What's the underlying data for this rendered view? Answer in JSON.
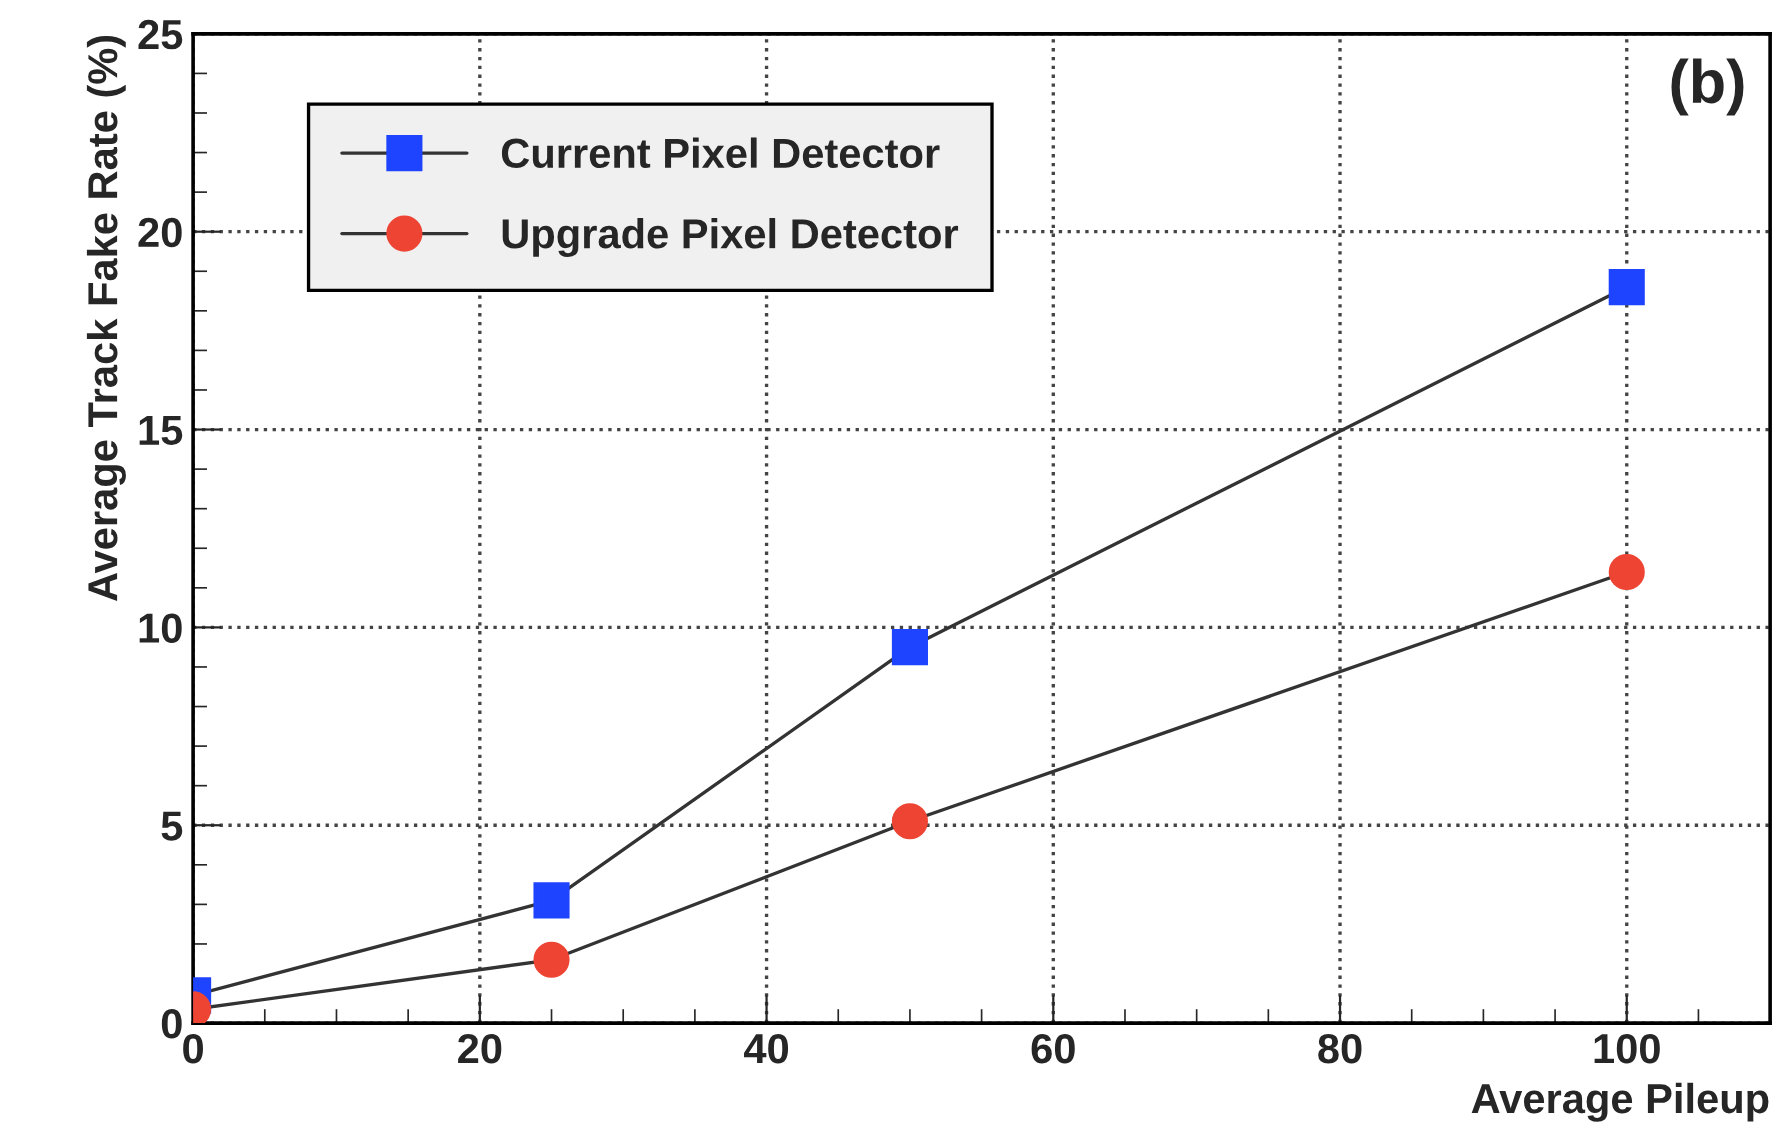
{
  "chart_data": {
    "type": "line",
    "xlabel": "Average Pileup",
    "ylabel": "Average Track Fake Rate (%)",
    "annotations": [
      "(b)"
    ],
    "x": [
      0,
      25,
      50,
      100
    ],
    "series": [
      {
        "name": "Current Pixel Detector",
        "color": "#1f44ff",
        "marker": "square",
        "values": [
          0.7,
          3.1,
          9.5,
          18.6
        ]
      },
      {
        "name": "Upgrade Pixel Detector",
        "color": "#ee4433",
        "marker": "circle",
        "values": [
          0.35,
          1.6,
          5.1,
          11.4
        ]
      }
    ],
    "xlim": [
      0,
      110
    ],
    "xticks": [
      0,
      20,
      40,
      60,
      80,
      100
    ],
    "ylim": [
      0,
      25
    ],
    "yticks": [
      0,
      5,
      10,
      15,
      20,
      25
    ],
    "grid": true,
    "legend": "top left",
    "line_style": "solid"
  }
}
